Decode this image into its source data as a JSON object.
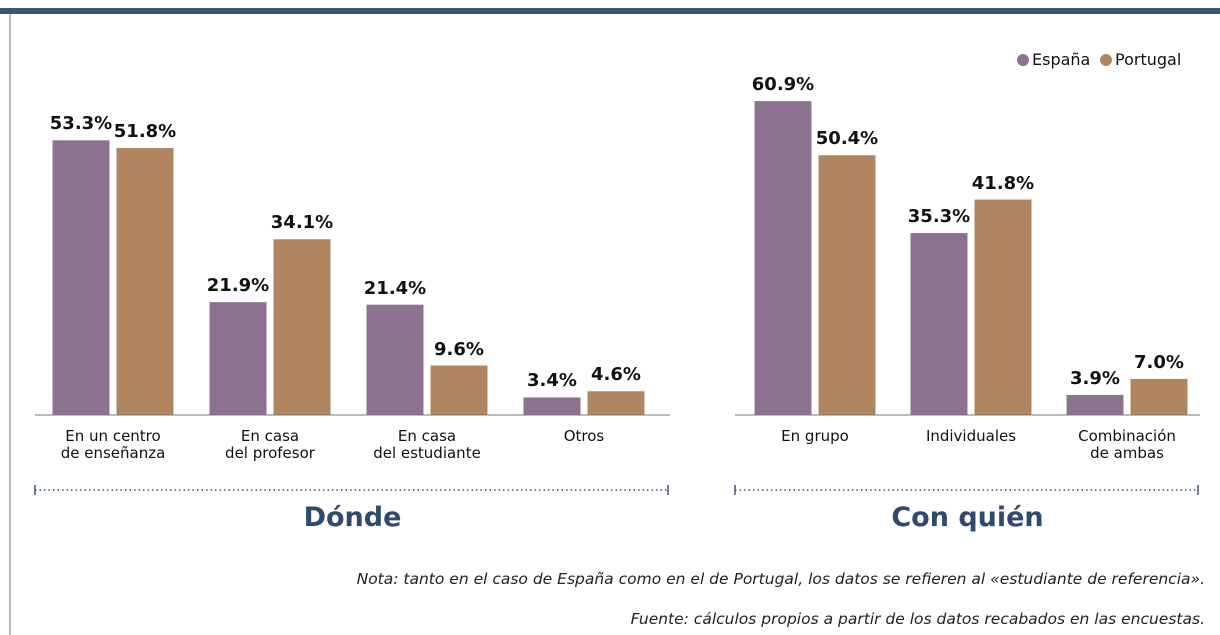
{
  "chart_data": [
    {
      "type": "bar",
      "xlabel": "Dónde",
      "categories": [
        "En un centro\nde enseñanza",
        "En casa\ndel profesor",
        "En casa\ndel estudiante",
        "Otros"
      ],
      "ylim": [
        0,
        65
      ],
      "series": [
        {
          "color": "#8c7191",
          "values": [
            53.3,
            21.9,
            21.4,
            3.4
          ],
          "value_labels": [
            "53.3%",
            "21.9%",
            "21.4%",
            "3.4%"
          ]
        },
        {
          "color": "#b08560",
          "values": [
            51.8,
            34.1,
            9.6,
            4.6
          ],
          "value_labels": [
            "51.8%",
            "34.1%",
            "9.6%",
            "4.6%"
          ]
        }
      ]
    },
    {
      "type": "bar",
      "xlabel": "Con quién",
      "categories": [
        "En grupo",
        "Individuales",
        "Combinación\nde ambas"
      ],
      "ylim": [
        0,
        65
      ],
      "legend": "upper right",
      "series": [
        {
          "name": "España",
          "color": "#8c7191",
          "values": [
            60.9,
            35.3,
            3.9
          ],
          "value_labels": [
            "60.9%",
            "35.3%",
            "3.9%"
          ]
        },
        {
          "name": "Portugal",
          "color": "#b08560",
          "values": [
            50.4,
            41.8,
            7.0
          ],
          "value_labels": [
            "50.4%",
            "41.8%",
            "7.0%"
          ]
        }
      ]
    }
  ],
  "note": "Nota: tanto en el caso de España como en el de Portugal, los datos se refieren al «estudiante de referencia».",
  "source": "Fuente: cálculos propios a partir de los datos recabados en las encuestas."
}
